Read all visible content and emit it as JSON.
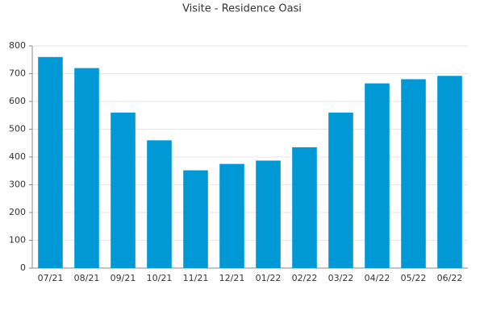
{
  "chart_data": {
    "type": "bar",
    "title": "Visite - Residence Oasi",
    "categories": [
      "07/21",
      "08/21",
      "09/21",
      "10/21",
      "11/21",
      "12/21",
      "01/22",
      "02/22",
      "03/22",
      "04/22",
      "05/22",
      "06/22"
    ],
    "values": [
      760,
      720,
      560,
      460,
      352,
      375,
      387,
      435,
      560,
      665,
      680,
      692
    ],
    "color": "#0099d6",
    "ylim": [
      0,
      800
    ],
    "yticks": [
      0,
      100,
      200,
      300,
      400,
      500,
      600,
      700,
      800
    ],
    "grid": true
  }
}
